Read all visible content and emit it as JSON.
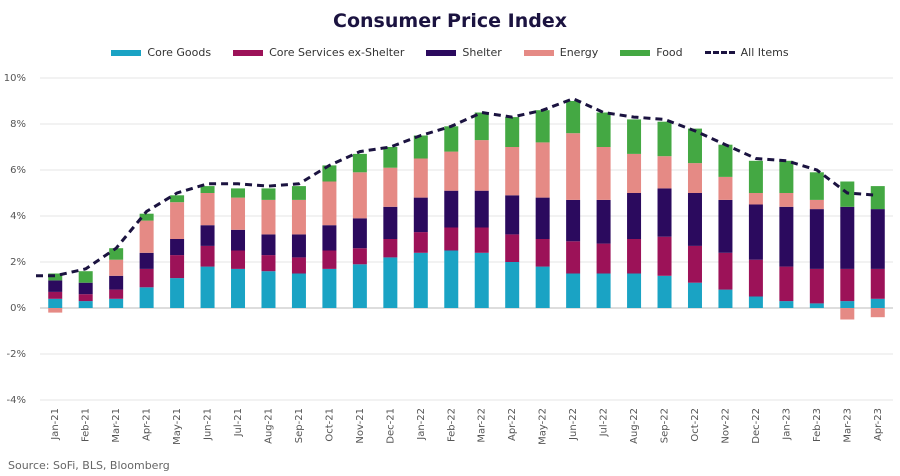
{
  "chart_data": {
    "type": "bar",
    "title": "Consumer Price Index",
    "stacked": true,
    "categories": [
      "Jan-21",
      "Feb-21",
      "Mar-21",
      "Apr-21",
      "May-21",
      "Jun-21",
      "Jul-21",
      "Aug-21",
      "Sep-21",
      "Oct-21",
      "Nov-21",
      "Dec-21",
      "Jan-22",
      "Feb-22",
      "Mar-22",
      "Apr-22",
      "May-22",
      "Jun-22",
      "Jul-22",
      "Aug-22",
      "Sep-22",
      "Oct-22",
      "Nov-22",
      "Dec-22",
      "Jan-23",
      "Feb-23",
      "Mar-23",
      "Apr-23"
    ],
    "series": [
      {
        "name": "Core Goods",
        "color": "#1aa3c4",
        "values": [
          0.4,
          0.3,
          0.4,
          0.9,
          1.3,
          1.8,
          1.7,
          1.6,
          1.5,
          1.7,
          1.9,
          2.2,
          2.4,
          2.5,
          2.4,
          2.0,
          1.8,
          1.5,
          1.5,
          1.5,
          1.4,
          1.1,
          0.8,
          0.5,
          0.3,
          0.2,
          0.3,
          0.4
        ]
      },
      {
        "name": "Core Services ex-Shelter",
        "color": "#9c1258",
        "values": [
          0.3,
          0.3,
          0.4,
          0.8,
          1.0,
          0.9,
          0.8,
          0.7,
          0.7,
          0.8,
          0.7,
          0.8,
          0.9,
          1.0,
          1.1,
          1.2,
          1.2,
          1.4,
          1.3,
          1.5,
          1.7,
          1.6,
          1.6,
          1.6,
          1.5,
          1.5,
          1.4,
          1.3
        ]
      },
      {
        "name": "Shelter",
        "color": "#2b0a5e",
        "values": [
          0.5,
          0.5,
          0.6,
          0.7,
          0.7,
          0.9,
          0.9,
          0.9,
          1.0,
          1.1,
          1.3,
          1.4,
          1.5,
          1.6,
          1.6,
          1.7,
          1.8,
          1.8,
          1.9,
          2.0,
          2.1,
          2.3,
          2.3,
          2.4,
          2.6,
          2.6,
          2.7,
          2.6
        ]
      },
      {
        "name": "Energy",
        "color": "#e58a85",
        "values": [
          -0.2,
          0.0,
          0.7,
          1.4,
          1.6,
          1.4,
          1.4,
          1.5,
          1.5,
          1.9,
          2.0,
          1.7,
          1.7,
          1.7,
          2.2,
          2.1,
          2.4,
          2.9,
          2.3,
          1.7,
          1.4,
          1.3,
          1.0,
          0.5,
          0.6,
          0.4,
          -0.5,
          -0.4
        ]
      },
      {
        "name": "Food",
        "color": "#44a843",
        "values": [
          0.3,
          0.5,
          0.5,
          0.3,
          0.3,
          0.3,
          0.4,
          0.5,
          0.6,
          0.7,
          0.8,
          0.9,
          1.0,
          1.1,
          1.2,
          1.3,
          1.4,
          1.4,
          1.5,
          1.5,
          1.5,
          1.5,
          1.4,
          1.4,
          1.4,
          1.2,
          1.1,
          1.0
        ]
      }
    ],
    "line": {
      "name": "All Items",
      "color": "#1b1340",
      "values": [
        1.4,
        1.7,
        2.6,
        4.2,
        5.0,
        5.4,
        5.4,
        5.3,
        5.4,
        6.2,
        6.8,
        7.0,
        7.5,
        7.9,
        8.5,
        8.3,
        8.6,
        9.1,
        8.5,
        8.3,
        8.2,
        7.7,
        7.1,
        6.5,
        6.4,
        6.0,
        5.0,
        4.9
      ]
    },
    "ylim": [
      -4,
      10
    ],
    "yticks": [
      "-4%",
      "-2%",
      "0%",
      "2%",
      "4%",
      "6%",
      "8%",
      "10%"
    ],
    "grid": true,
    "legend_position": "top"
  },
  "source": "Source: SoFi, BLS, Bloomberg"
}
